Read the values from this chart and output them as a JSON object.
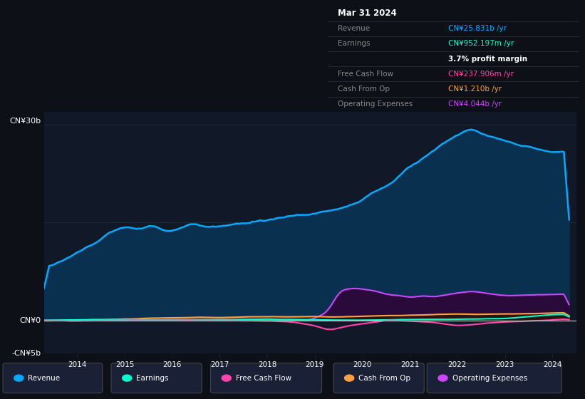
{
  "bg_color": "#0d1117",
  "plot_bg_color": "#111827",
  "title_box": {
    "date": "Mar 31 2024",
    "rows": [
      {
        "label": "Revenue",
        "value": "CN¥25.831b /yr",
        "value_color": "#00aaff"
      },
      {
        "label": "Earnings",
        "value": "CN¥952.197m /yr",
        "value_color": "#00ffcc"
      },
      {
        "label": "",
        "value": "3.7% profit margin",
        "value_color": "#ffffff"
      },
      {
        "label": "Free Cash Flow",
        "value": "CN¥237.906m /yr",
        "value_color": "#ff44aa"
      },
      {
        "label": "Cash From Op",
        "value": "CN¥1.210b /yr",
        "value_color": "#ffa040"
      },
      {
        "label": "Operating Expenses",
        "value": "CN¥4.044b /yr",
        "value_color": "#cc44ff"
      }
    ]
  },
  "ylabel_top": "CN¥30b",
  "ylabel_zero": "CN¥0",
  "ylabel_neg": "-CN¥5b",
  "xlim": [
    2013.3,
    2024.5
  ],
  "ylim": [
    -5000000000.0,
    32000000000.0
  ],
  "legend": [
    {
      "label": "Revenue",
      "color": "#00aaff"
    },
    {
      "label": "Earnings",
      "color": "#00ffcc"
    },
    {
      "label": "Free Cash Flow",
      "color": "#ff44aa"
    },
    {
      "label": "Cash From Op",
      "color": "#ffa040"
    },
    {
      "label": "Operating Expenses",
      "color": "#cc44ff"
    }
  ],
  "grid_color": "#1e2d3d",
  "zero_line_color": "#cccccc",
  "revenue_color": "#00aaff",
  "revenue_fill": "#0a3050",
  "earnings_color": "#00ffcc",
  "free_cash_color": "#ff44aa",
  "cash_op_color": "#ffa040",
  "op_exp_color": "#cc44ff",
  "op_exp_fill": "#2a0a3a",
  "cash_op_fill": "#2a1800"
}
